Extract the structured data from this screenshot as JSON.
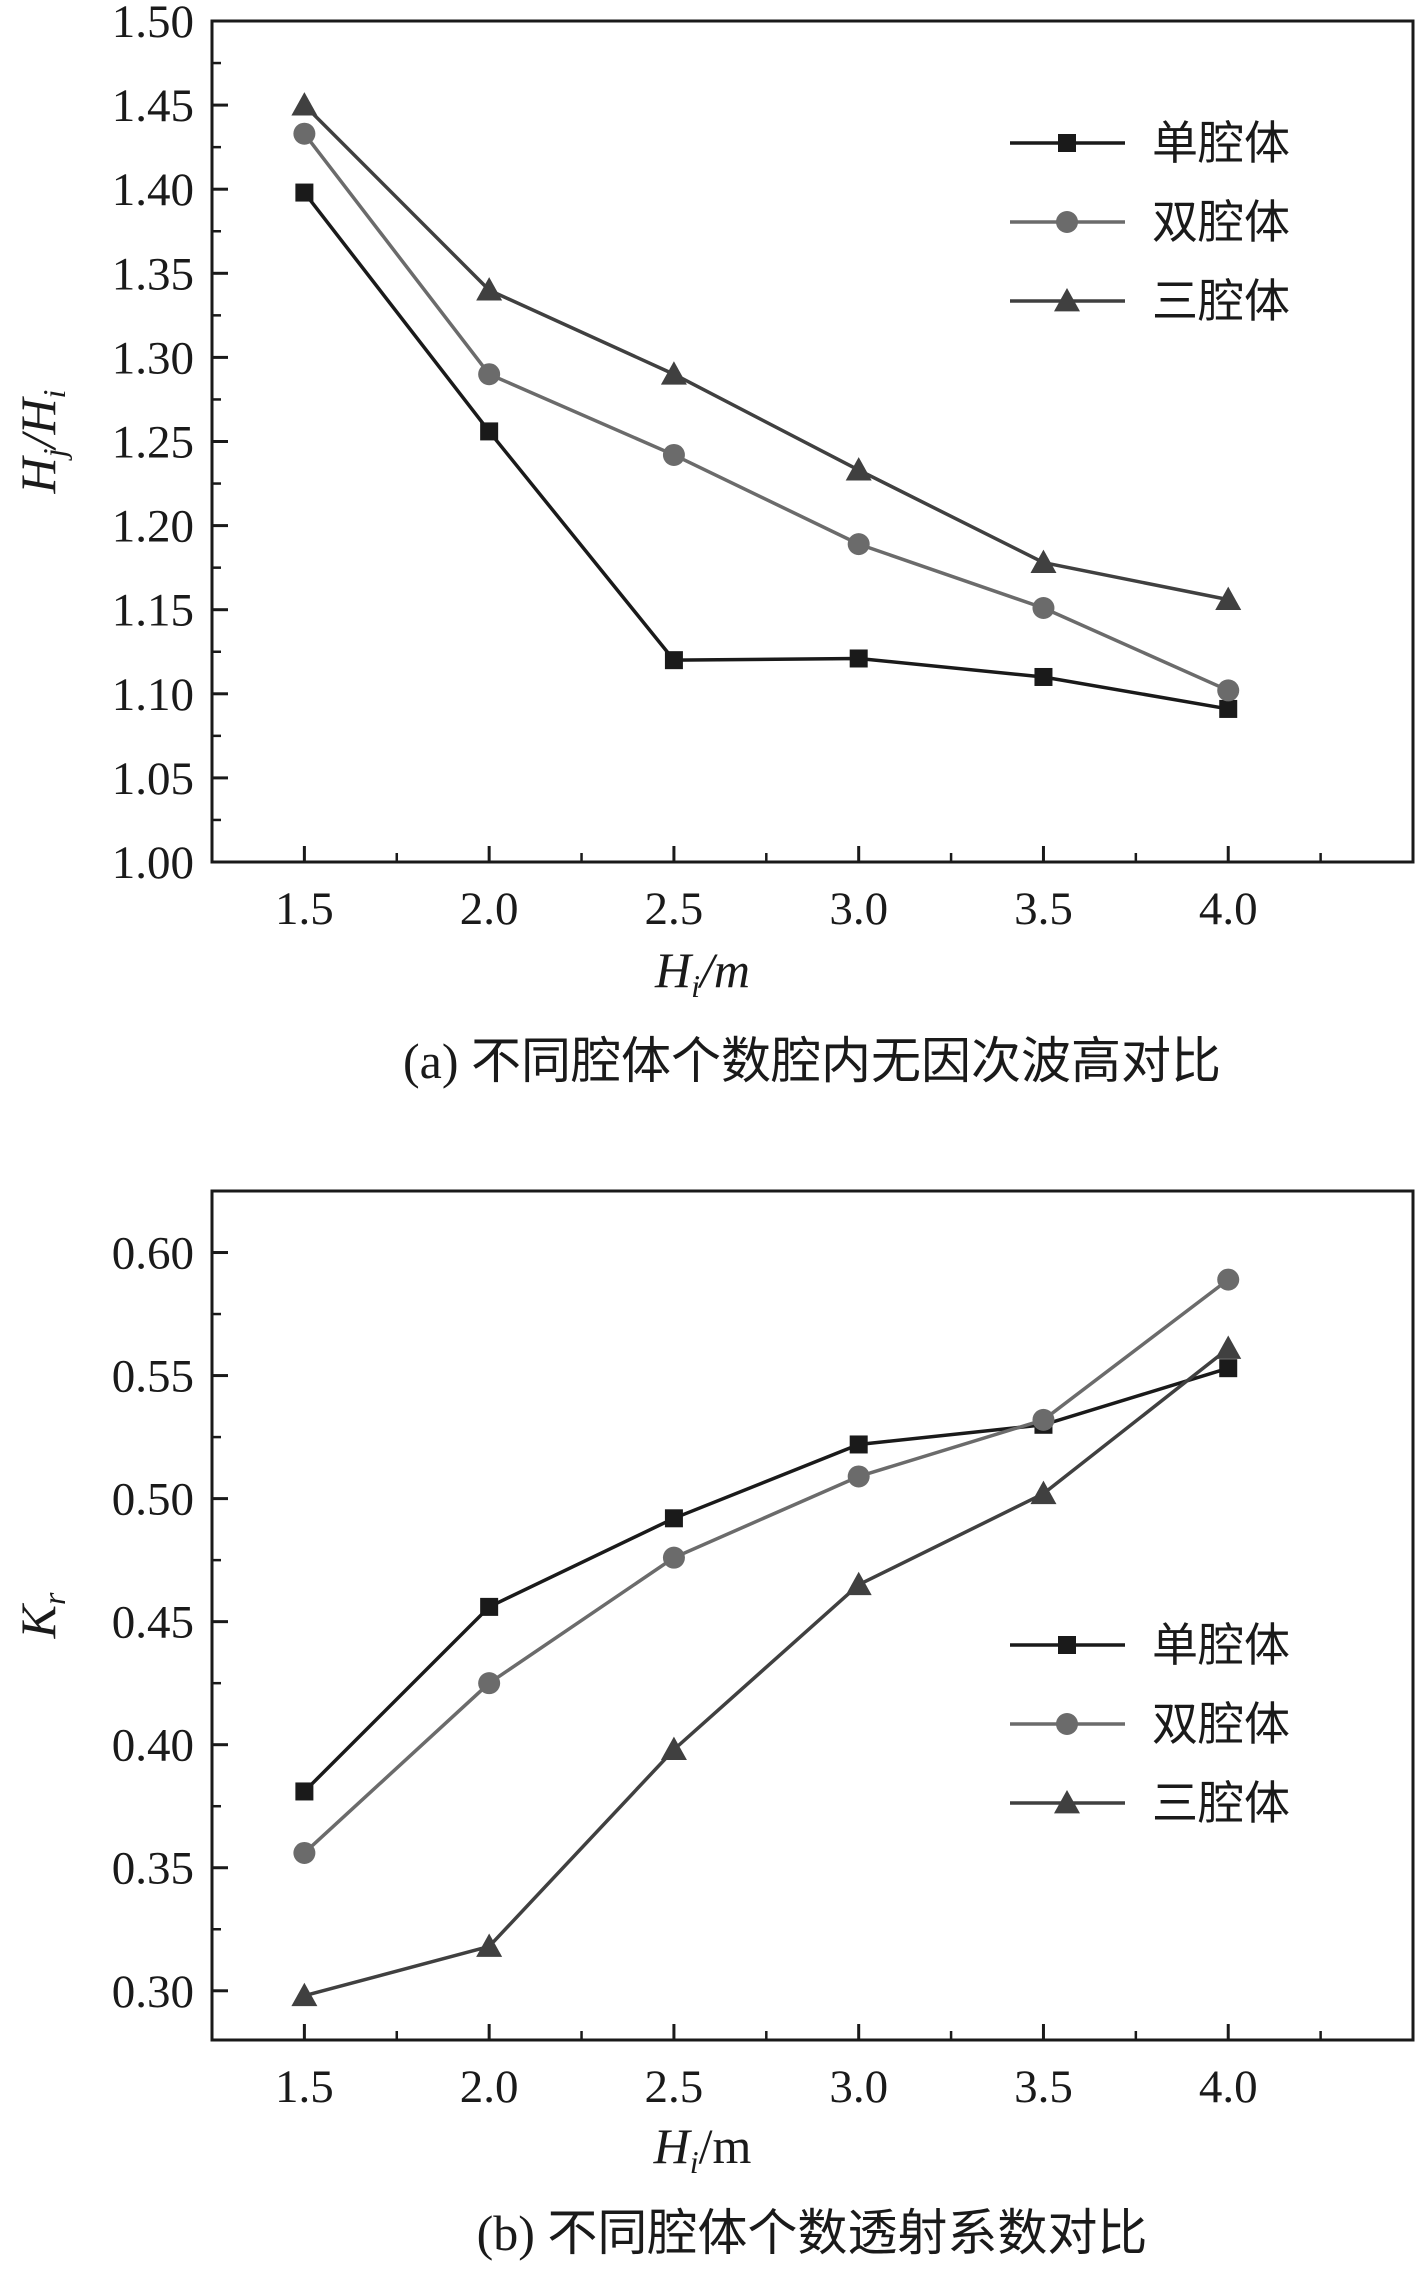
{
  "chart_data": [
    {
      "type": "line",
      "caption": "(a) 不同腔体个数腔内无因次波高对比",
      "xlabel": {
        "main": "H",
        "sub": "i",
        "suffix": "/m"
      },
      "ylabel": {
        "main1": "H",
        "sub1": "j",
        "mid": "/H",
        "sub2": "i"
      },
      "xlim": [
        1.25,
        4.5
      ],
      "ylim": [
        1.0,
        1.5
      ],
      "x": [
        1.5,
        2.0,
        2.5,
        3.0,
        3.5,
        4.0
      ],
      "x_ticks": [
        "1.5",
        "2.0",
        "2.5",
        "3.0",
        "3.5",
        "4.0"
      ],
      "y_ticks": [
        {
          "v": 1.0,
          "label": "1.00"
        },
        {
          "v": 1.05,
          "label": "1.05"
        },
        {
          "v": 1.1,
          "label": "1.10"
        },
        {
          "v": 1.15,
          "label": "1.15"
        },
        {
          "v": 1.2,
          "label": "1.20"
        },
        {
          "v": 1.25,
          "label": "1.25"
        },
        {
          "v": 1.3,
          "label": "1.30"
        },
        {
          "v": 1.35,
          "label": "1.35"
        },
        {
          "v": 1.4,
          "label": "1.40"
        },
        {
          "v": 1.45,
          "label": "1.45"
        },
        {
          "v": 1.5,
          "label": "1.50"
        }
      ],
      "grid": false,
      "legend_position": "top-right",
      "series": [
        {
          "name": "单腔体",
          "marker": "square",
          "color": "#1a1a1a",
          "values": [
            1.398,
            1.256,
            1.12,
            1.121,
            1.11,
            1.091
          ]
        },
        {
          "name": "双腔体",
          "marker": "circle",
          "color": "#6b6b6b",
          "values": [
            1.433,
            1.29,
            1.242,
            1.189,
            1.151,
            1.102
          ]
        },
        {
          "name": "三腔体",
          "marker": "triangle",
          "color": "#404040",
          "values": [
            1.45,
            1.34,
            1.29,
            1.233,
            1.178,
            1.156
          ]
        }
      ]
    },
    {
      "type": "line",
      "caption": "(b) 不同腔体个数透射系数对比",
      "xlabel": {
        "main": "H",
        "sub": "i",
        "suffix": "/m"
      },
      "ylabel": {
        "main": "K",
        "sub": "r"
      },
      "xlim": [
        1.25,
        4.5
      ],
      "ylim": [
        0.28,
        0.625
      ],
      "x": [
        1.5,
        2.0,
        2.5,
        3.0,
        3.5,
        4.0
      ],
      "x_ticks": [
        "1.5",
        "2.0",
        "2.5",
        "3.0",
        "3.5",
        "4.0"
      ],
      "y_ticks": [
        {
          "v": 0.3,
          "label": "0.30"
        },
        {
          "v": 0.35,
          "label": "0.35"
        },
        {
          "v": 0.4,
          "label": "0.40"
        },
        {
          "v": 0.45,
          "label": "0.45"
        },
        {
          "v": 0.5,
          "label": "0.50"
        },
        {
          "v": 0.55,
          "label": "0.55"
        },
        {
          "v": 0.6,
          "label": "0.60"
        }
      ],
      "grid": false,
      "legend_position": "right",
      "series": [
        {
          "name": "单腔体",
          "marker": "square",
          "color": "#1a1a1a",
          "values": [
            0.381,
            0.456,
            0.492,
            0.522,
            0.53,
            0.553
          ]
        },
        {
          "name": "双腔体",
          "marker": "circle",
          "color": "#6b6b6b",
          "values": [
            0.356,
            0.425,
            0.476,
            0.509,
            0.532,
            0.589
          ]
        },
        {
          "name": "三腔体",
          "marker": "triangle",
          "color": "#404040",
          "values": [
            0.298,
            0.318,
            0.398,
            0.465,
            0.502,
            0.561
          ]
        }
      ]
    }
  ]
}
